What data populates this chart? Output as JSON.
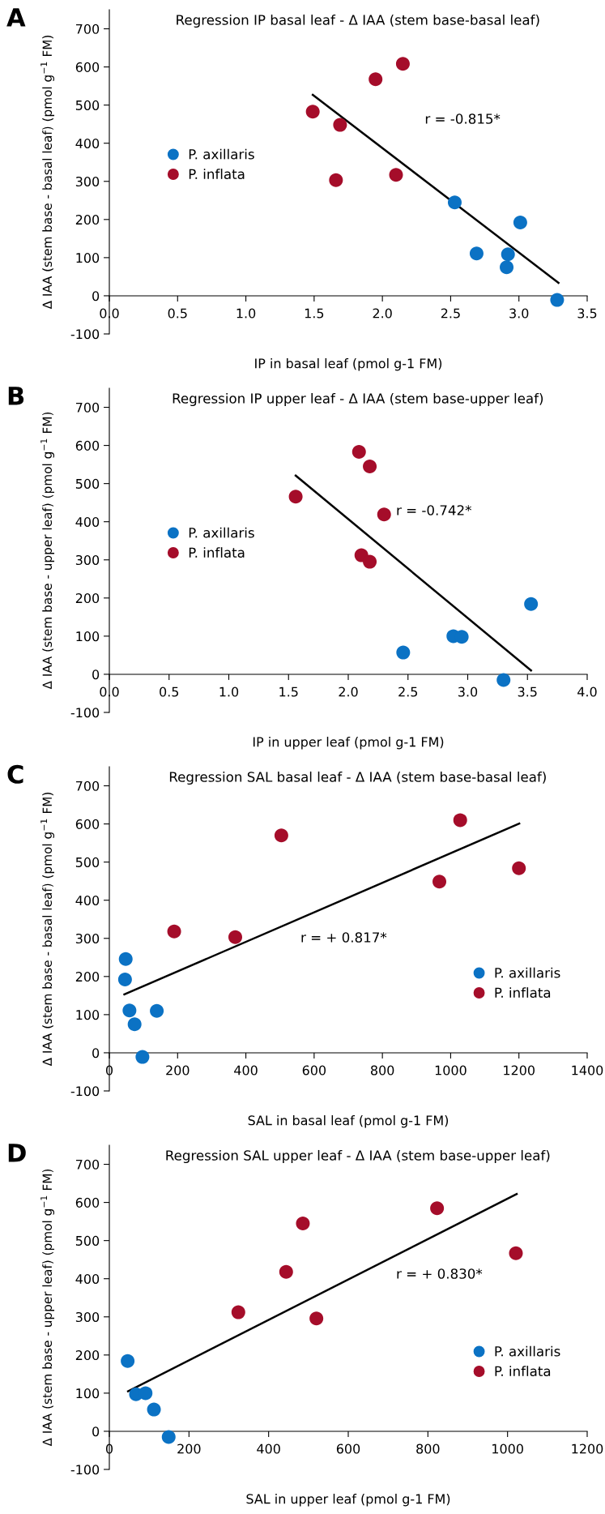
{
  "chart_data": [
    {
      "type": "scatter",
      "title": "Regression IP basal leaf - Δ IAA (stem base-basal leaf)",
      "xlabel": "IP in basal leaf (pmol g-1 FM)",
      "ylabel": "Δ IAA (stem base - basal leaf) (pmol g$^{−1}$ FM)",
      "annotations": [
        "A",
        "r = -0.815*"
      ],
      "xlim": [
        0,
        3.5
      ],
      "xticks": [
        {
          "value": 0,
          "label": "0.0"
        },
        0.5,
        {
          "value": 1,
          "label": "1.0"
        },
        1.5,
        {
          "value": 2,
          "label": "2.0"
        },
        2.5,
        {
          "value": 3,
          "label": "3.0"
        },
        3.5
      ],
      "ylim": [
        -100,
        750
      ],
      "yticks": [
        -100,
        0,
        100,
        200,
        300,
        400,
        500,
        600,
        700
      ],
      "grid": false,
      "legend": "left",
      "series": [
        {
          "name": "P. axillaris",
          "marker": "circle",
          "color": "#0b72c4",
          "x": [
            2.53,
            2.69,
            2.92,
            2.91,
            3.01,
            3.28
          ],
          "values": [
            245,
            111,
            109,
            75,
            192,
            -11
          ]
        },
        {
          "name": "P. inflata",
          "marker": "circle",
          "color": "#a50d2a",
          "x": [
            1.49,
            1.69,
            1.66,
            1.95,
            2.15,
            2.1
          ],
          "values": [
            483,
            448,
            303,
            568,
            608,
            317
          ]
        },
        {
          "type": "line",
          "color": "#000000",
          "x": [
            1.49,
            3.29
          ],
          "values": [
            527,
            34
          ]
        }
      ]
    },
    {
      "type": "scatter",
      "title": "Regression IP upper leaf - Δ IAA (stem base-upper leaf)",
      "xlabel": "IP in upper leaf (pmol g-1 FM)",
      "ylabel": "Δ IAA (stem base - upper leaf) (pmol g$^{−1}$ FM)",
      "annotations": [
        "B",
        "r = -0.742*"
      ],
      "xlim": [
        0,
        4
      ],
      "xticks": [
        {
          "value": 0,
          "label": "0.0"
        },
        0.5,
        {
          "value": 1,
          "label": "1.0"
        },
        1.5,
        {
          "value": 2,
          "label": "2.0"
        },
        2.5,
        {
          "value": 3,
          "label": "3.0"
        },
        3.5,
        {
          "value": 4,
          "label": "4.0"
        }
      ],
      "ylim": [
        -100,
        750
      ],
      "yticks": [
        -100,
        0,
        100,
        200,
        300,
        400,
        500,
        600,
        700
      ],
      "grid": false,
      "legend": "left",
      "series": [
        {
          "name": "P. axillaris",
          "marker": "circle",
          "color": "#0b72c4",
          "x": [
            2.46,
            2.88,
            2.95,
            3.3,
            3.53
          ],
          "values": [
            57,
            100,
            98,
            -15,
            184
          ]
        },
        {
          "name": "P. inflata",
          "marker": "circle",
          "color": "#a50d2a",
          "x": [
            1.56,
            2.09,
            2.18,
            2.3,
            2.11,
            2.18
          ],
          "values": [
            466,
            583,
            545,
            419,
            312,
            295
          ]
        },
        {
          "type": "line",
          "color": "#000000",
          "x": [
            1.56,
            3.53
          ],
          "values": [
            521,
            10
          ]
        }
      ]
    },
    {
      "type": "scatter",
      "title": "Regression SAL basal leaf - Δ IAA (stem base-basal leaf)",
      "xlabel": "SAL in basal leaf (pmol g-1 FM)",
      "ylabel": "Δ IAA (stem base - basal leaf) (pmol g$^{−1}$ FM)",
      "annotations": [
        "C",
        "r = + 0.817*"
      ],
      "xlim": [
        0,
        1400
      ],
      "xticks": [
        0,
        200,
        400,
        600,
        800,
        1000,
        1200,
        1400
      ],
      "ylim": [
        -100,
        750
      ],
      "yticks": [
        -100,
        0,
        100,
        200,
        300,
        400,
        500,
        600,
        700
      ],
      "grid": false,
      "legend": "right",
      "series": [
        {
          "name": "P. axillaris",
          "marker": "circle",
          "color": "#0b72c4",
          "x": [
            48,
            46,
            59,
            139,
            74,
            97
          ],
          "values": [
            246,
            192,
            111,
            110,
            75,
            -11
          ]
        },
        {
          "name": "P. inflata",
          "marker": "circle",
          "color": "#a50d2a",
          "x": [
            190,
            369,
            504,
            967,
            1028,
            1200
          ],
          "values": [
            318,
            303,
            570,
            449,
            610,
            484
          ]
        },
        {
          "type": "line",
          "color": "#000000",
          "x": [
            44,
            1201
          ],
          "values": [
            153,
            601
          ]
        }
      ]
    },
    {
      "type": "scatter",
      "title": "Regression SAL upper leaf - Δ IAA (stem base-upper leaf)",
      "xlabel": "SAL in upper leaf (pmol g-1 FM)",
      "ylabel": "Δ IAA (stem base - upper leaf) (pmol g$^{−1}$ FM)",
      "annotations": [
        "D",
        "r = + 0.830*"
      ],
      "xlim": [
        0,
        1200
      ],
      "xticks": [
        0,
        200,
        400,
        600,
        800,
        1000,
        1200
      ],
      "ylim": [
        -100,
        750
      ],
      "yticks": [
        -100,
        0,
        100,
        200,
        300,
        400,
        500,
        600,
        700
      ],
      "grid": false,
      "legend": "right",
      "series": [
        {
          "name": "P. axillaris",
          "marker": "circle",
          "color": "#0b72c4",
          "x": [
            46,
            67,
            91,
            112,
            149
          ],
          "values": [
            184,
            97,
            100,
            57,
            -15
          ]
        },
        {
          "name": "P. inflata",
          "marker": "circle",
          "color": "#a50d2a",
          "x": [
            324,
            444,
            486,
            520,
            823,
            1021
          ],
          "values": [
            312,
            418,
            545,
            296,
            585,
            467
          ]
        },
        {
          "type": "line",
          "color": "#000000",
          "x": [
            47,
            1023
          ],
          "values": [
            105,
            622
          ]
        }
      ]
    }
  ]
}
